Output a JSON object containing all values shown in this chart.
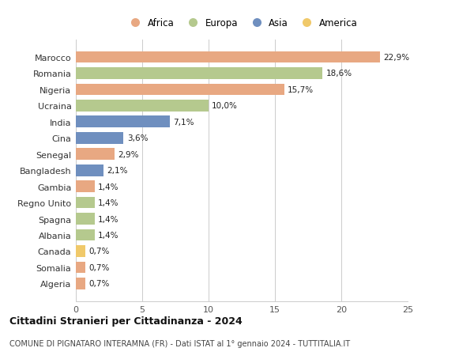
{
  "countries": [
    "Marocco",
    "Romania",
    "Nigeria",
    "Ucraina",
    "India",
    "Cina",
    "Senegal",
    "Bangladesh",
    "Gambia",
    "Regno Unito",
    "Spagna",
    "Albania",
    "Canada",
    "Somalia",
    "Algeria"
  ],
  "values": [
    22.9,
    18.6,
    15.7,
    10.0,
    7.1,
    3.6,
    2.9,
    2.1,
    1.4,
    1.4,
    1.4,
    1.4,
    0.7,
    0.7,
    0.7
  ],
  "labels": [
    "22,9%",
    "18,6%",
    "15,7%",
    "10,0%",
    "7,1%",
    "3,6%",
    "2,9%",
    "2,1%",
    "1,4%",
    "1,4%",
    "1,4%",
    "1,4%",
    "0,7%",
    "0,7%",
    "0,7%"
  ],
  "continents": [
    "Africa",
    "Europa",
    "Africa",
    "Europa",
    "Asia",
    "Asia",
    "Africa",
    "Asia",
    "Africa",
    "Europa",
    "Europa",
    "Europa",
    "America",
    "Africa",
    "Africa"
  ],
  "colors": {
    "Africa": "#E8A882",
    "Europa": "#B5C98E",
    "Asia": "#6F8FBF",
    "America": "#F0C96A"
  },
  "xlim": [
    0,
    25
  ],
  "xticks": [
    0,
    5,
    10,
    15,
    20,
    25
  ],
  "title": "Cittadini Stranieri per Cittadinanza - 2024",
  "subtitle": "COMUNE DI PIGNATARO INTERAMNA (FR) - Dati ISTAT al 1° gennaio 2024 - TUTTITALIA.IT",
  "background_color": "#ffffff",
  "grid_color": "#cccccc",
  "legend_order": [
    "Africa",
    "Europa",
    "Asia",
    "America"
  ]
}
